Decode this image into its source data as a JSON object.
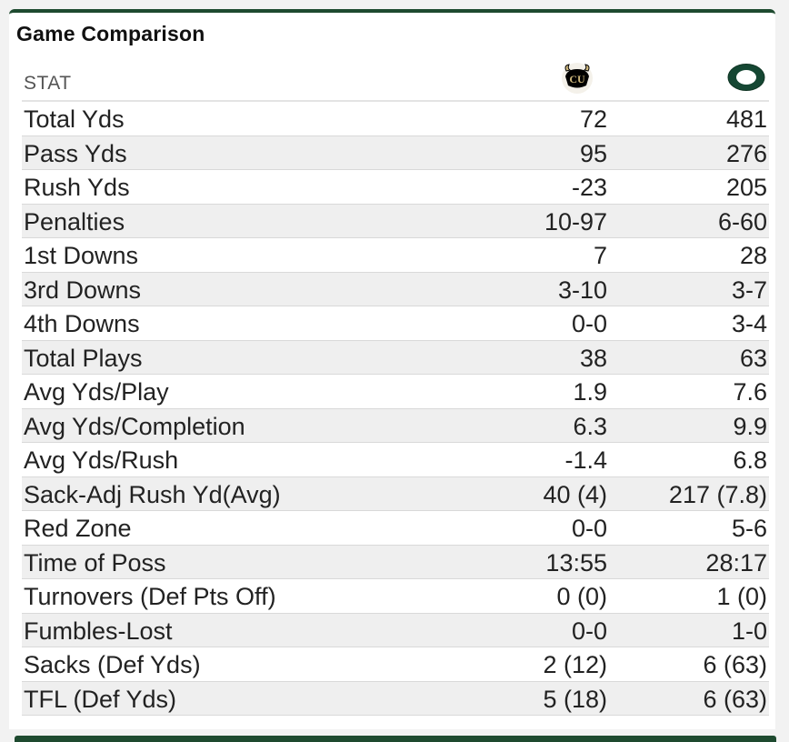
{
  "card": {
    "title": "Game Comparison",
    "stat_header": "STAT"
  },
  "teams": {
    "away": {
      "logo_icon": "colorado-buffaloes-logo-icon",
      "color": "#000000",
      "accent": "#cfb87c"
    },
    "home": {
      "logo_icon": "oregon-ducks-logo-icon",
      "color": "#154733"
    }
  },
  "colors": {
    "header_bar": "#1e4a2f",
    "stripe": "#efefef"
  },
  "rows": [
    {
      "stat": "Total Yds",
      "away": "72",
      "home": "481"
    },
    {
      "stat": "Pass Yds",
      "away": "95",
      "home": "276"
    },
    {
      "stat": "Rush Yds",
      "away": "-23",
      "home": "205"
    },
    {
      "stat": "Penalties",
      "away": "10-97",
      "home": "6-60"
    },
    {
      "stat": "1st Downs",
      "away": "7",
      "home": "28"
    },
    {
      "stat": "3rd Downs",
      "away": "3-10",
      "home": "3-7"
    },
    {
      "stat": "4th Downs",
      "away": "0-0",
      "home": "3-4"
    },
    {
      "stat": "Total Plays",
      "away": "38",
      "home": "63"
    },
    {
      "stat": "Avg Yds/Play",
      "away": "1.9",
      "home": "7.6"
    },
    {
      "stat": "Avg Yds/Completion",
      "away": "6.3",
      "home": "9.9"
    },
    {
      "stat": "Avg Yds/Rush",
      "away": "-1.4",
      "home": "6.8"
    },
    {
      "stat": "Sack-Adj Rush Yd(Avg)",
      "away": "40 (4)",
      "home": "217 (7.8)"
    },
    {
      "stat": "Red Zone",
      "away": "0-0",
      "home": "5-6"
    },
    {
      "stat": "Time of Poss",
      "away": "13:55",
      "home": "28:17"
    },
    {
      "stat": "Turnovers (Def Pts Off)",
      "away": "0 (0)",
      "home": "1 (0)"
    },
    {
      "stat": "Fumbles-Lost",
      "away": "0-0",
      "home": "1-0"
    },
    {
      "stat": "Sacks (Def Yds)",
      "away": "2 (12)",
      "home": "6 (63)"
    },
    {
      "stat": "TFL (Def Yds)",
      "away": "5 (18)",
      "home": "6 (63)"
    }
  ]
}
